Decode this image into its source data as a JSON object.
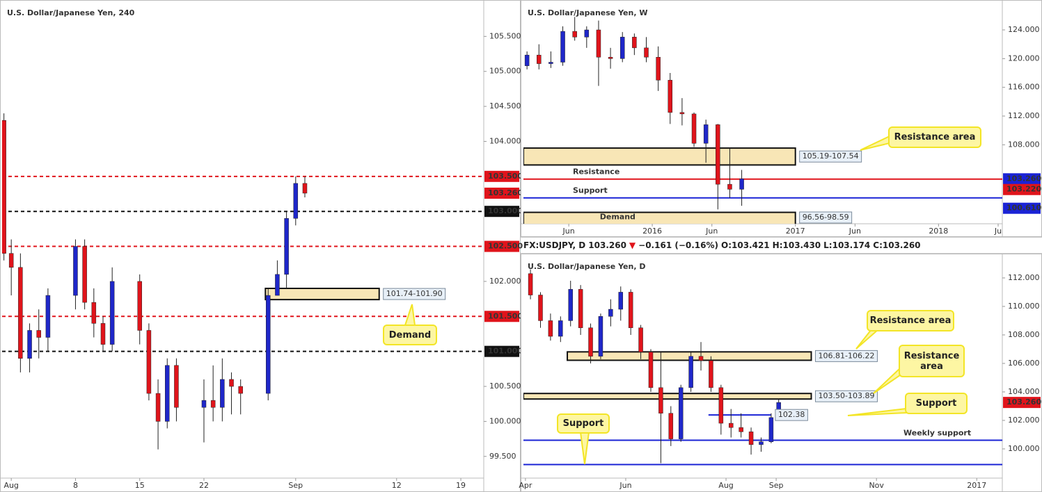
{
  "chart_data": [
    {
      "type": "candlestick",
      "title": "U.S. Dollar/Japanese Yen, 240",
      "xlim": [
        -1,
        51.5
      ],
      "xticks": [
        {
          "value": 0,
          "label": "Aug"
        },
        {
          "value": 7,
          "label": "8"
        },
        {
          "value": 14,
          "label": "15"
        },
        {
          "value": 21,
          "label": "22"
        },
        {
          "value": 31,
          "label": "Sep"
        },
        {
          "value": 42,
          "label": "12"
        },
        {
          "value": 49,
          "label": "19"
        }
      ],
      "ylim": [
        99.19,
        105.97
      ],
      "yticks": [
        {
          "value": 105.5,
          "label": "105.500"
        },
        {
          "value": 105,
          "label": "105.000"
        },
        {
          "value": 104.5,
          "label": "104.500"
        },
        {
          "value": 104,
          "label": "104.000"
        },
        {
          "value": 102,
          "label": "102.000"
        },
        {
          "value": 100.5,
          "label": "100.500"
        },
        {
          "value": 100,
          "label": "100.000"
        },
        {
          "value": 99.5,
          "label": "99.500"
        }
      ],
      "up_color": "#1f27c9",
      "down_color": "#e0141b",
      "candles": {
        "x": [
          -0.8,
          0,
          1,
          2,
          3,
          4,
          7,
          8,
          9,
          10,
          11,
          14,
          15,
          16,
          17,
          18,
          21,
          22,
          23,
          24,
          25,
          28,
          29,
          30,
          31,
          32
        ],
        "open": [
          104.3,
          102.4,
          102.2,
          100.9,
          101.3,
          101.2,
          101.8,
          102.5,
          101.7,
          101.4,
          101.1,
          102.0,
          101.3,
          100.4,
          100.0,
          100.8,
          100.2,
          100.3,
          100.2,
          100.6,
          100.5,
          100.4,
          101.8,
          102.1,
          102.9,
          103.4
        ],
        "high": [
          104.4,
          102.6,
          102.4,
          101.4,
          101.6,
          101.9,
          102.6,
          102.6,
          101.9,
          101.5,
          102.2,
          102.1,
          101.4,
          100.6,
          100.9,
          100.9,
          100.6,
          100.8,
          100.9,
          100.7,
          100.6,
          101.9,
          102.3,
          103.0,
          103.5,
          103.5
        ],
        "low": [
          102.3,
          101.8,
          100.7,
          100.7,
          100.9,
          101.0,
          101.6,
          101.6,
          101.2,
          101.0,
          101.0,
          101.1,
          100.3,
          99.6,
          99.9,
          100.0,
          99.7,
          100.0,
          100.0,
          100.1,
          100.1,
          100.3,
          101.8,
          101.9,
          102.8,
          103.2
        ],
        "close": [
          102.4,
          102.2,
          100.9,
          101.3,
          101.2,
          101.8,
          102.5,
          101.7,
          101.4,
          101.1,
          102.0,
          101.3,
          100.4,
          100.0,
          100.8,
          100.2,
          100.3,
          100.2,
          100.6,
          100.5,
          100.4,
          101.8,
          102.1,
          102.9,
          103.4,
          103.26
        ]
      },
      "levels": [
        {
          "value": 103.5,
          "color": "#e0141b",
          "dash": true,
          "axis_label": "103.500"
        },
        {
          "value": 103,
          "color": "#111111",
          "dash": true,
          "axis_label": "103.000"
        },
        {
          "value": 102.5,
          "color": "#e0141b",
          "dash": true,
          "axis_label": "102.500"
        },
        {
          "value": 101.5,
          "color": "#e0141b",
          "dash": true,
          "axis_label": "101.500"
        },
        {
          "value": 101,
          "color": "#111111",
          "dash": true,
          "axis_label": "101.000"
        }
      ],
      "zones": [
        {
          "low": 101.74,
          "high": 101.9,
          "x_start": 27.7,
          "x_end": 40.1,
          "tag": "101.74-101.90"
        }
      ],
      "price_labels": [
        {
          "value": 103.26,
          "label": "103.260",
          "color": "#e0141b"
        }
      ],
      "annotations": [
        "Demand"
      ]
    },
    {
      "type": "candlestick",
      "title": "U.S. Dollar/Japanese Yen, W",
      "xlim": [
        1.2,
        41.35
      ],
      "xticks": [
        {
          "value": 5,
          "label": "Jun"
        },
        {
          "value": 12,
          "label": "2016"
        },
        {
          "value": 17,
          "label": "Jun"
        },
        {
          "value": 24,
          "label": "2017"
        },
        {
          "value": 29,
          "label": "Jun"
        },
        {
          "value": 36,
          "label": "2018"
        },
        {
          "value": 41,
          "label": "Ju"
        }
      ],
      "ylim": [
        97.0,
        127.68
      ],
      "yticks": [
        {
          "value": 124,
          "label": "124.000"
        },
        {
          "value": 120,
          "label": "120.000"
        },
        {
          "value": 116,
          "label": "116.000"
        },
        {
          "value": 112,
          "label": "112.000"
        },
        {
          "value": 108,
          "label": "108.000"
        }
      ],
      "up_color": "#1f27c9",
      "down_color": "#e0141b",
      "candles": {
        "x": [
          1.5,
          2.5,
          3.5,
          4.5,
          5.5,
          6.5,
          7.5,
          8.5,
          9.5,
          10.5,
          11.5,
          12.5,
          13.5,
          14.5,
          15.5,
          16.5,
          17.5,
          18.5,
          19.5
        ],
        "open": [
          119,
          120.5,
          119.3,
          119.5,
          123.8,
          123.0,
          124.0,
          120.2,
          120.0,
          123.0,
          121.5,
          120.2,
          117.0,
          112.5,
          112.3,
          108.2,
          110.8,
          102.5,
          101.8
        ],
        "high": [
          121,
          122,
          121,
          124.5,
          125.8,
          124.5,
          125.3,
          121.5,
          123.7,
          123.5,
          123.0,
          121.7,
          118.0,
          114.5,
          112.5,
          111.5,
          110.9,
          107.5,
          104.5
        ],
        "low": [
          118.5,
          118.5,
          118.7,
          119,
          122.5,
          121.5,
          116.2,
          118.6,
          119.5,
          120.5,
          119.5,
          115.5,
          110.9,
          110.7,
          107.7,
          105.5,
          99.0,
          100.6,
          99.5
        ],
        "close": [
          120.5,
          119.3,
          119.5,
          123.8,
          123.0,
          124.0,
          120.2,
          120.0,
          123.0,
          121.5,
          120.2,
          117.0,
          112.5,
          112.3,
          108.2,
          110.8,
          102.5,
          101.8,
          103.26
        ]
      },
      "levels": [
        {
          "value": 103.22,
          "color": "#e0141b",
          "axis_label": "103.220",
          "label": "Resistance"
        },
        {
          "value": 100.61,
          "color": "#1a23d6",
          "axis_label": "100.610",
          "label": "Support"
        }
      ],
      "zones": [
        {
          "low": 105.19,
          "high": 107.54,
          "x_start": 1.2,
          "x_end": 24,
          "tag": "105.19-107.54"
        },
        {
          "low": 96.56,
          "high": 98.59,
          "x_start": 1.2,
          "x_end": 24,
          "tag": "96.56-98.59",
          "name": "Demand"
        }
      ],
      "price_labels": [
        {
          "value": 103.26,
          "label": "103.260",
          "color": "#1a23d6"
        }
      ],
      "annotations": [
        "Resistance area"
      ]
    },
    {
      "type": "candlestick",
      "title": "U.S. Dollar/Japanese Yen, D",
      "xlim": [
        -0.04,
        9.51
      ],
      "xticks": [
        {
          "value": 0,
          "label": "Apr"
        },
        {
          "value": 2,
          "label": "Jun"
        },
        {
          "value": 4,
          "label": "Aug"
        },
        {
          "value": 5,
          "label": "Sep"
        },
        {
          "value": 7,
          "label": "Nov"
        },
        {
          "value": 9,
          "label": "2017"
        }
      ],
      "ylim": [
        97.95,
        113.46
      ],
      "yticks": [
        {
          "value": 112,
          "label": "112.000"
        },
        {
          "value": 110,
          "label": "110.000"
        },
        {
          "value": 108,
          "label": "108.000"
        },
        {
          "value": 106,
          "label": "106.000"
        },
        {
          "value": 104,
          "label": "104.000"
        },
        {
          "value": 102,
          "label": "102.000"
        },
        {
          "value": 100,
          "label": "100.000"
        }
      ],
      "up_color": "#1f27c9",
      "down_color": "#e0141b",
      "candles": {
        "x": [
          0.1,
          0.3,
          0.5,
          0.7,
          0.9,
          1.1,
          1.3,
          1.5,
          1.7,
          1.9,
          2.1,
          2.3,
          2.5,
          2.7,
          2.9,
          3.1,
          3.3,
          3.5,
          3.7,
          3.9,
          4.1,
          4.3,
          4.5,
          4.7,
          4.9,
          5.05
        ],
        "open": [
          112.3,
          110.8,
          109.0,
          107.9,
          109.0,
          111.2,
          108.5,
          106.5,
          109.3,
          109.8,
          111.0,
          108.5,
          106.8,
          104.3,
          102.5,
          100.7,
          104.3,
          106.5,
          106.2,
          104.3,
          101.8,
          101.5,
          101.2,
          100.3,
          100.5,
          102.2
        ],
        "high": [
          112.6,
          111.0,
          109.5,
          109.3,
          111.8,
          111.5,
          108.8,
          109.5,
          110.5,
          111.4,
          111.2,
          108.7,
          107.0,
          106.8,
          103.0,
          104.5,
          106.8,
          107.5,
          106.5,
          104.5,
          102.8,
          102.5,
          101.5,
          100.8,
          102.5,
          103.5
        ],
        "low": [
          110.5,
          108.5,
          107.6,
          107.5,
          108.6,
          108.0,
          106.0,
          106.3,
          108.6,
          109.0,
          108.0,
          106.3,
          104.0,
          99.0,
          100.2,
          100.5,
          104.0,
          105.5,
          104.0,
          101.0,
          100.8,
          100.8,
          99.6,
          99.8,
          100.4,
          102.0
        ],
        "close": [
          110.8,
          109.0,
          107.9,
          109.0,
          111.2,
          108.5,
          106.5,
          109.3,
          109.8,
          111.0,
          108.5,
          106.8,
          104.3,
          102.5,
          100.7,
          104.3,
          106.5,
          106.2,
          104.3,
          101.8,
          101.5,
          101.2,
          100.3,
          100.5,
          102.2,
          103.26
        ]
      },
      "levels": [
        {
          "value": 102.38,
          "color": "#1a23d6",
          "x_start": 3.65,
          "x_end": 4.9,
          "tag": "102.38"
        },
        {
          "value": 100.61,
          "color": "#1a23d6",
          "label": "Weekly support"
        },
        {
          "value": 98.9,
          "color": "#1a23d6"
        }
      ],
      "zones": [
        {
          "low": 106.22,
          "high": 106.81,
          "x_start": 0.835,
          "x_end": 5.7,
          "tag": "106.81-106.22"
        },
        {
          "low": 103.5,
          "high": 103.89,
          "x_start": -0.04,
          "x_end": 5.7,
          "tag": "103.50-103.89"
        }
      ],
      "price_labels": [
        {
          "value": 103.26,
          "label": "103.260",
          "color": "#e0141b"
        }
      ],
      "annotations": [
        "Resistance area",
        "Resistance area",
        "Support",
        "Support"
      ]
    }
  ],
  "symbol_bar": {
    "symbol": "FX:USDJPY, D",
    "last": "103.260",
    "arrow": "▼",
    "change": "−0.161 (−0.16%)",
    "open": "O:103.421",
    "high": "H:103.430",
    "low": "L:103.174",
    "close": "C:103.260"
  }
}
